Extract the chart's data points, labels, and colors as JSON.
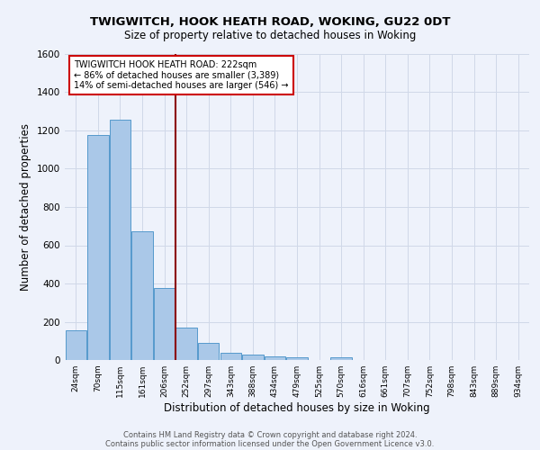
{
  "title": "TWIGWITCH, HOOK HEATH ROAD, WOKING, GU22 0DT",
  "subtitle": "Size of property relative to detached houses in Woking",
  "xlabel": "Distribution of detached houses by size in Woking",
  "ylabel": "Number of detached properties",
  "footnote1": "Contains HM Land Registry data © Crown copyright and database right 2024.",
  "footnote2": "Contains public sector information licensed under the Open Government Licence v3.0.",
  "bar_labels": [
    "24sqm",
    "70sqm",
    "115sqm",
    "161sqm",
    "206sqm",
    "252sqm",
    "297sqm",
    "343sqm",
    "388sqm",
    "434sqm",
    "479sqm",
    "525sqm",
    "570sqm",
    "616sqm",
    "661sqm",
    "707sqm",
    "752sqm",
    "798sqm",
    "843sqm",
    "889sqm",
    "934sqm"
  ],
  "bar_values": [
    155,
    1175,
    1255,
    675,
    375,
    170,
    90,
    38,
    28,
    18,
    14,
    0,
    14,
    0,
    0,
    0,
    0,
    0,
    0,
    0,
    0
  ],
  "bar_color": "#aac8e8",
  "bar_edge_color": "#5599cc",
  "background_color": "#eef2fb",
  "grid_color": "#d0d8e8",
  "ylim": [
    0,
    1600
  ],
  "yticks": [
    0,
    200,
    400,
    600,
    800,
    1000,
    1200,
    1400,
    1600
  ],
  "property_line_x": 4.5,
  "property_line_color": "#8b0000",
  "annotation_text": "TWIGWITCH HOOK HEATH ROAD: 222sqm\n← 86% of detached houses are smaller (3,389)\n14% of semi-detached houses are larger (546) →",
  "annotation_box_color": "#ffffff",
  "annotation_box_edge": "#cc0000"
}
